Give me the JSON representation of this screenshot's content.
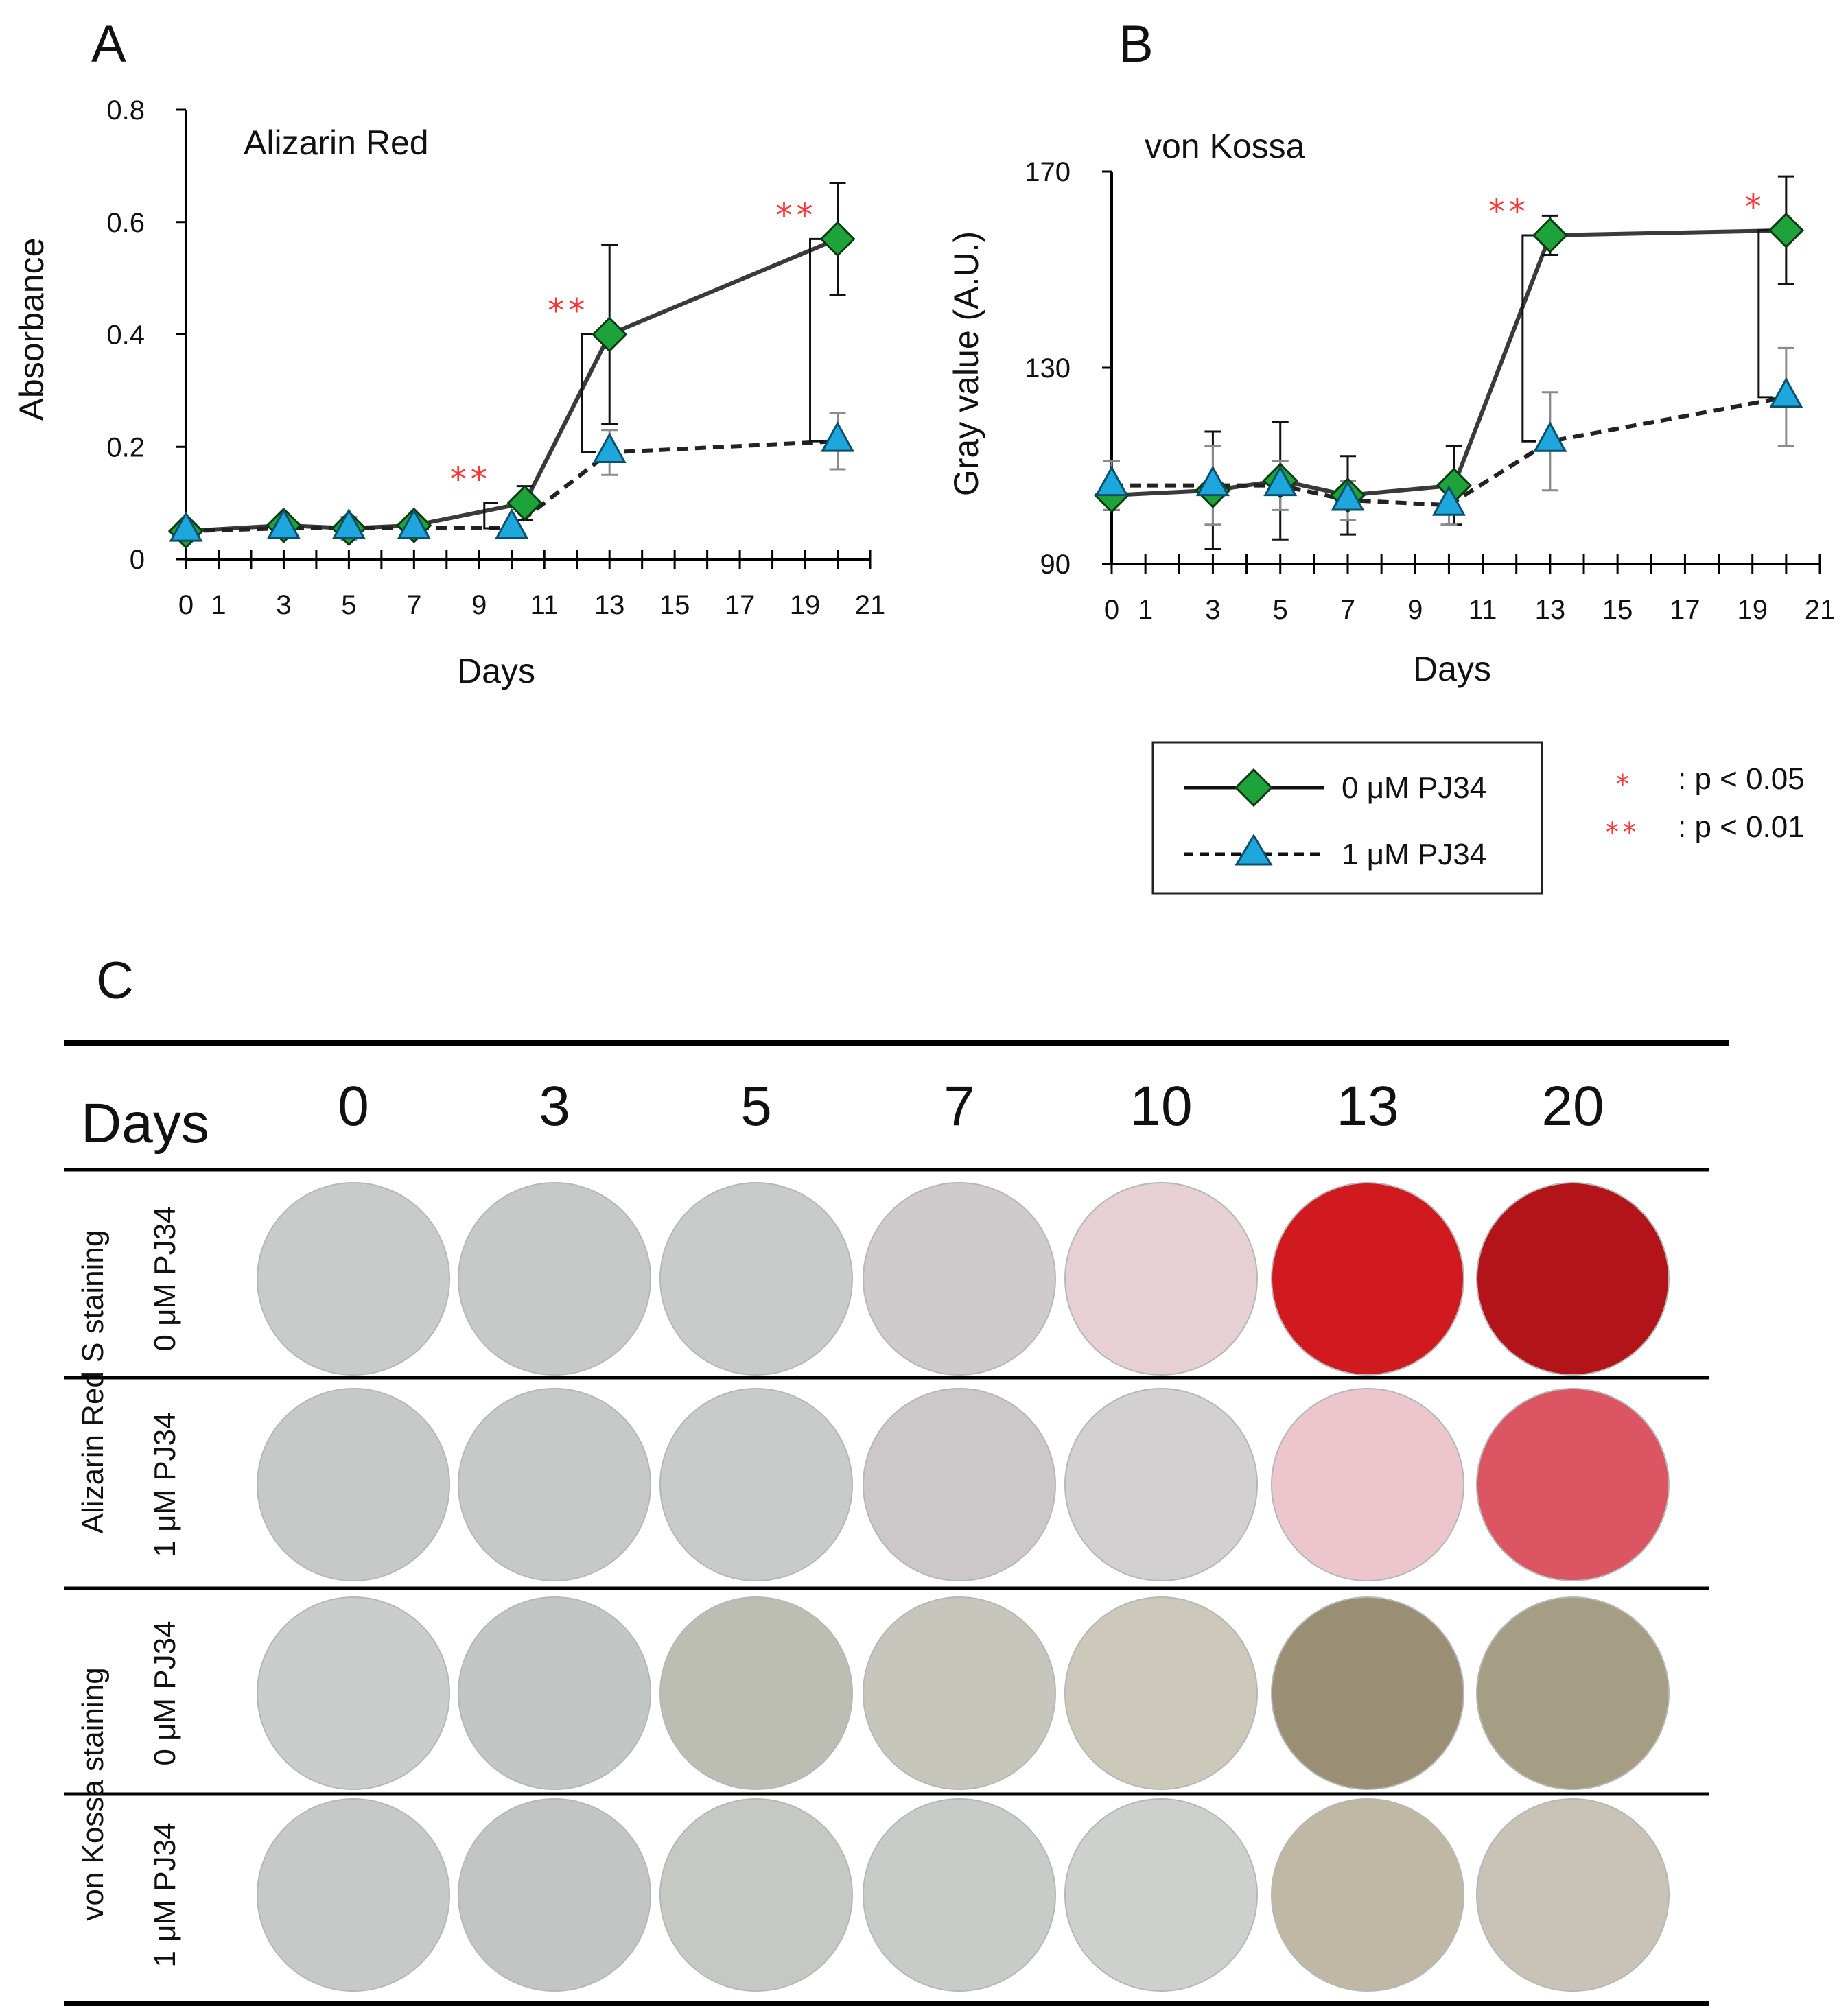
{
  "colors": {
    "line": "#3a3a3a",
    "diamond": "#1ea23a",
    "triangle": "#1da7dc",
    "star": "#ff3333",
    "errBlack": "#111111",
    "errGray": "#8a8a8a"
  },
  "panels": {
    "a": "A",
    "b": "B",
    "c": "C"
  },
  "chart_data": [
    {
      "id": "A",
      "type": "line",
      "title": "Alizarin Red",
      "xlabel": "Days",
      "ylabel": "Absorbance",
      "xlim": [
        0,
        21
      ],
      "ylim": [
        0,
        0.8
      ],
      "x_ticks": [
        0,
        1,
        3,
        5,
        7,
        9,
        11,
        13,
        15,
        17,
        19,
        21
      ],
      "y_ticks": [
        0,
        0.2,
        0.4,
        0.6,
        0.8
      ],
      "y_tick_labels": [
        "0",
        "0.2",
        "0.4",
        "0.6",
        "0.8"
      ],
      "x": [
        0,
        3,
        5,
        7,
        10,
        13,
        20
      ],
      "series": [
        {
          "name": "0 μM PJ34",
          "marker": "diamond",
          "style": "solid",
          "values": [
            0.05,
            0.06,
            0.055,
            0.06,
            0.1,
            0.4,
            0.57
          ],
          "errors": [
            0.005,
            0.008,
            0.01,
            0.008,
            0.03,
            0.16,
            0.1
          ]
        },
        {
          "name": "1 μM PJ34",
          "marker": "triangle",
          "style": "dashed",
          "values": [
            0.05,
            0.055,
            0.055,
            0.055,
            0.055,
            0.19,
            0.21
          ],
          "errors": [
            0.005,
            0.008,
            0.02,
            0.008,
            0.008,
            0.04,
            0.05
          ]
        }
      ],
      "significance": [
        {
          "x": 10,
          "y_low": 0.055,
          "y_high": 0.1,
          "label": "**"
        },
        {
          "x": 13,
          "y_low": 0.19,
          "y_high": 0.4,
          "label": "**"
        },
        {
          "x": 20,
          "y_low": 0.21,
          "y_high": 0.57,
          "label": "**"
        }
      ]
    },
    {
      "id": "B",
      "type": "line",
      "title": "von Kossa",
      "xlabel": "Days",
      "ylabel": "Gray value (A.U.)",
      "xlim": [
        0,
        21
      ],
      "ylim": [
        90,
        170
      ],
      "x_ticks": [
        0,
        1,
        3,
        5,
        7,
        9,
        11,
        13,
        15,
        17,
        19,
        21
      ],
      "y_ticks": [
        90,
        130,
        170
      ],
      "y_tick_labels": [
        "90",
        "130",
        "170"
      ],
      "x": [
        0,
        3,
        5,
        7,
        10,
        13,
        20
      ],
      "series": [
        {
          "name": "0 μM PJ34",
          "marker": "diamond",
          "style": "solid",
          "values": [
            104,
            105,
            107,
            104,
            106,
            157,
            158
          ],
          "errors": [
            3,
            12,
            12,
            8,
            8,
            4,
            11
          ]
        },
        {
          "name": "1 μM PJ34",
          "marker": "triangle",
          "style": "dashed",
          "values": [
            106,
            106,
            106,
            103,
            102,
            115,
            124
          ],
          "errors": [
            5,
            8,
            5,
            4,
            4,
            10,
            10
          ]
        }
      ],
      "significance": [
        {
          "x": 13,
          "y_low": 115,
          "y_high": 157,
          "label": "**"
        },
        {
          "x": 20,
          "y_low": 124,
          "y_high": 158,
          "label": "*"
        }
      ]
    }
  ],
  "legend": {
    "items": [
      "0 μM PJ34",
      "1 μM PJ34"
    ],
    "significance": [
      {
        "stars": "*",
        "text": ": p < 0.05"
      },
      {
        "stars": "**",
        "text": ": p < 0.01"
      }
    ]
  },
  "staining_table": {
    "header_label": "Days",
    "days": [
      "0",
      "3",
      "5",
      "7",
      "10",
      "13",
      "20"
    ],
    "groups": [
      {
        "label": "Alizarin Red S staining",
        "rows": [
          {
            "label": "0 μM PJ34",
            "wells": [
              "#c9cbca",
              "#c7c9c8",
              "#c9cbca",
              "#cfcbcc",
              "#e6d0d4",
              "#d01a1f",
              "#b3141a"
            ]
          },
          {
            "label": "1 μM PJ34",
            "wells": [
              "#c7c9c8",
              "#c7c9c8",
              "#c9cbca",
              "#ccc8c9",
              "#d2d0d1",
              "#ecc6cc",
              "#dc5563"
            ]
          }
        ]
      },
      {
        "label": "von Kossa staining",
        "rows": [
          {
            "label": "0 μM PJ34",
            "wells": [
              "#cacdcc",
              "#c2c6c4",
              "#bcbeb4",
              "#c7c6bd",
              "#ccc9bb",
              "#9a8f74",
              "#a69e84"
            ]
          },
          {
            "label": "1 μM PJ34",
            "wells": [
              "#c6c9c8",
              "#c2c5c3",
              "#c6c8c3",
              "#c8ccc9",
              "#cdd0cc",
              "#c0b8a4",
              "#c9c2b6"
            ]
          }
        ]
      }
    ]
  }
}
